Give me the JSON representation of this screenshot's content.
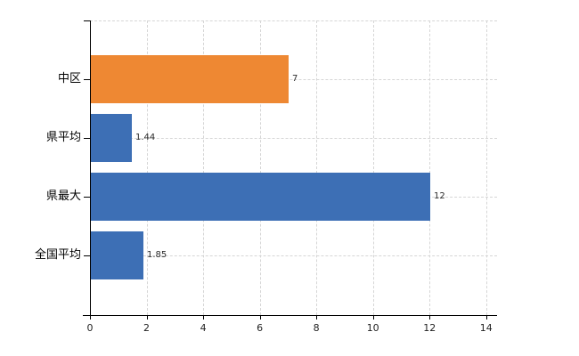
{
  "chart_data": {
    "type": "bar",
    "orientation": "horizontal",
    "title": "",
    "xlabel": "",
    "ylabel": "",
    "categories": [
      "中区",
      "県平均",
      "県最大",
      "全国平均"
    ],
    "values": [
      7,
      1.44,
      12,
      1.85
    ],
    "value_labels": [
      "7",
      "1.44",
      "12",
      "1.85"
    ],
    "series": [
      {
        "name": "中区",
        "value": 7,
        "color": "#EE8833"
      },
      {
        "name": "県平均",
        "value": 1.44,
        "color": "#3D6FB5"
      },
      {
        "name": "県最大",
        "value": 12,
        "color": "#3D6FB5"
      },
      {
        "name": "全国平均",
        "value": 1.85,
        "color": "#3D6FB5"
      }
    ],
    "x_ticks": [
      0,
      2,
      4,
      6,
      8,
      10,
      12,
      14
    ],
    "x_tick_labels": [
      "0",
      "2",
      "4",
      "6",
      "8",
      "10",
      "12",
      "14"
    ],
    "xlim": [
      0,
      14.38
    ],
    "grid": true,
    "legend": false
  },
  "colors": {
    "background": "#ffffff",
    "bar_highlight": "#EE8833",
    "bar_default": "#3D6FB5",
    "gridline": "#d6d6d6",
    "axis": "#000000",
    "tick_label": "#222222",
    "value_label": "#2b2b2b"
  }
}
